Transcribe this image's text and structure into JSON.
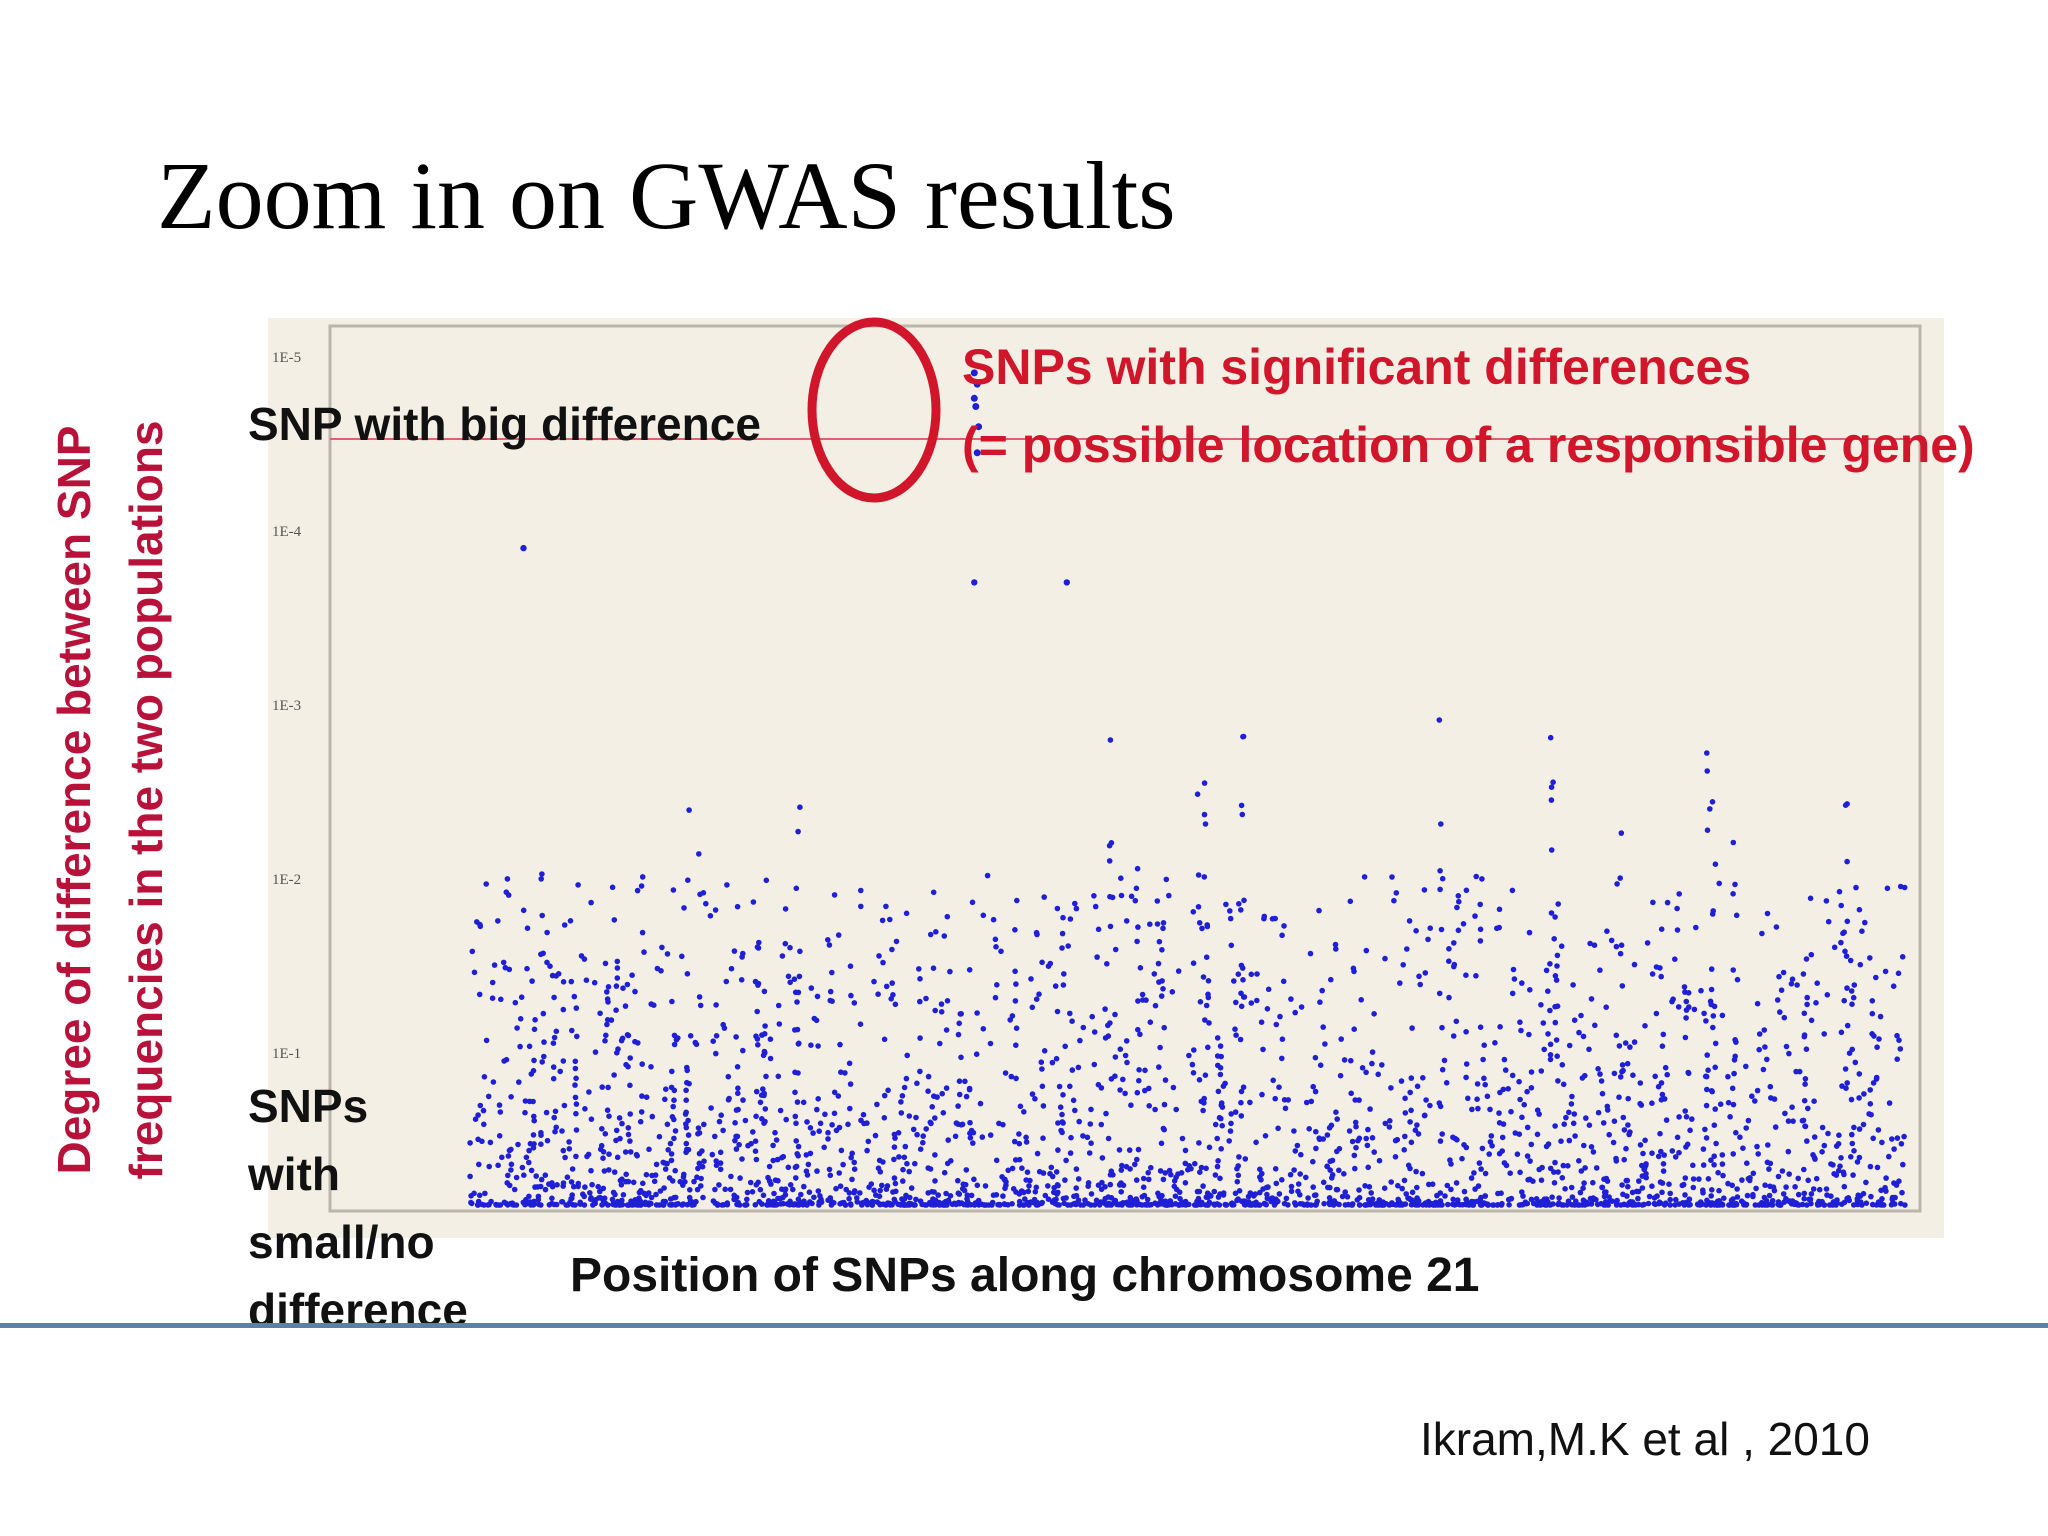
{
  "slide": {
    "title": "Zoom in on GWAS results",
    "citation": "Ikram,M.K et al , 2010"
  },
  "chart_data": {
    "type": "scatter",
    "title": "",
    "xlabel": "Position of SNPs along chromosome 21",
    "ylabel": "Degree of difference between SNP frequencies in the two populations",
    "y_scale": "log",
    "y_axis_inverted": true,
    "y_ticks": [
      "1E-5",
      "1E-4",
      "1E-3",
      "1E-2",
      "1E-1"
    ],
    "ylim": [
      1e-05,
      1
    ],
    "top_label": "SNP with big difference",
    "bottom_label": "SNPs with small/no difference",
    "annotation": [
      "SNPs with significant differences",
      "(= possible location of a responsible gene)"
    ],
    "threshold_p": 3e-05,
    "significant_points": [
      {
        "x": 0.349,
        "p": 1.25e-05
      },
      {
        "x": 0.351,
        "p": 1.45e-05
      },
      {
        "x": 0.349,
        "p": 1.75e-05
      },
      {
        "x": 0.35,
        "p": 1.95e-05
      },
      {
        "x": 0.352,
        "p": 2.55e-05
      },
      {
        "x": 0.351,
        "p": 3.6e-05
      }
    ],
    "secondary_peaks": [
      {
        "x": 0.037,
        "p": 0.000127
      },
      {
        "x": 0.349,
        "p": 0.0002
      },
      {
        "x": 0.413,
        "p": 0.0002
      }
    ],
    "colors": {
      "points": "#1f1fd6",
      "threshold": "#e06070",
      "annotation": "#d1162b",
      "background": "#f3efe4"
    }
  }
}
